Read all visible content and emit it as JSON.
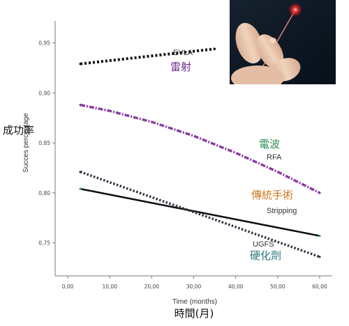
{
  "chart_data": {
    "type": "line",
    "xlabel": "Time (months)",
    "xlabel_zh": "時間(月)",
    "ylabel": "Succes percentage",
    "ylabel_zh": "成功率",
    "xlim": [
      -3,
      63
    ],
    "ylim": [
      0.717,
      0.972
    ],
    "x_ticks": [
      0,
      10,
      20,
      30,
      40,
      50,
      60
    ],
    "x_tick_labels": [
      "0,00",
      "10,00",
      "20,00",
      "30,00",
      "40,00",
      "50,00",
      "60,00"
    ],
    "y_ticks": [
      0.75,
      0.8,
      0.85,
      0.9,
      0.95
    ],
    "y_tick_labels": [
      "0,75",
      "0,80",
      "0,85",
      "0,90",
      "0,95"
    ],
    "grid": false,
    "legend": "none",
    "series": [
      {
        "name": "EVLA",
        "name_zh": "雷射",
        "color": "#111111",
        "style": "dotted-thick",
        "x": [
          3,
          35
        ],
        "y": [
          0.929,
          0.944
        ],
        "label_color_zh": "#6a2a8a"
      },
      {
        "name": "RFA",
        "name_zh": "電波",
        "color": "#8a3d9e",
        "style": "dash-dot",
        "x": [
          3,
          10,
          20,
          30,
          40,
          50,
          60
        ],
        "y": [
          0.888,
          0.882,
          0.871,
          0.857,
          0.84,
          0.821,
          0.8
        ],
        "label_color_zh": "#2e8b57"
      },
      {
        "name": "Stripping",
        "name_zh": "傳統手術",
        "color": "#111111",
        "style": "solid",
        "x": [
          3,
          60
        ],
        "y": [
          0.804,
          0.757
        ],
        "label_color_zh": "#c9781e"
      },
      {
        "name": "UGFS",
        "name_zh": "硬化劑",
        "color": "#333344",
        "style": "dotted",
        "x": [
          3,
          60
        ],
        "y": [
          0.821,
          0.736
        ],
        "label_color_zh": "#2a7a7a"
      }
    ]
  },
  "photo": {
    "icon": "laser-fiber-photo-icon",
    "bg": "#0d1722",
    "skin": "#e9c6ac",
    "glow": "#ff2a2a"
  }
}
